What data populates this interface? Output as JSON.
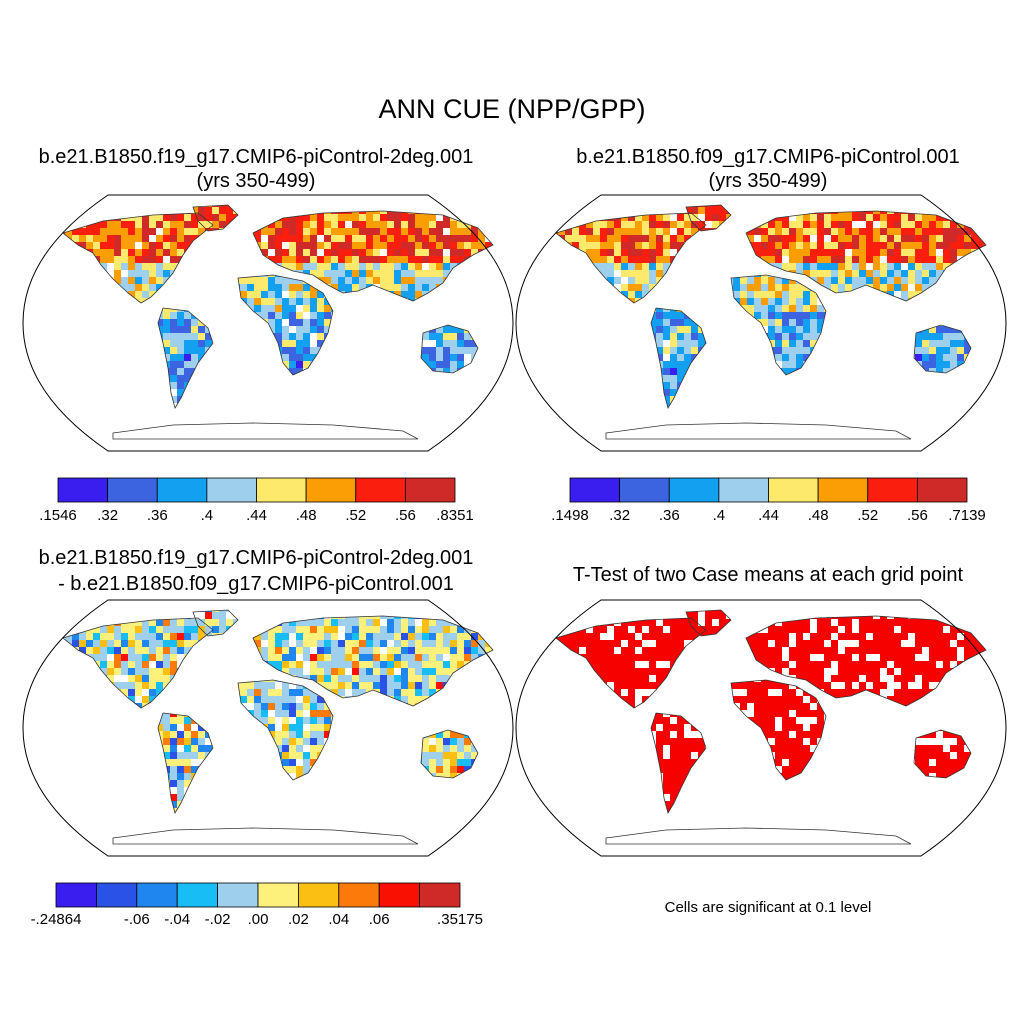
{
  "main_title": "ANN CUE (NPP/GPP)",
  "panels": [
    {
      "title_line1": "b.e21.B1850.f19_g17.CMIP6-piControl-2deg.001",
      "title_line2": "(yrs 350-499)",
      "palette": [
        "#3a1ef0",
        "#3c64e0",
        "#14a0f0",
        "#9ed0ee",
        "#fde96c",
        "#fb9e06",
        "#fa1e0e",
        "#d02a28"
      ],
      "labelbar_labels": [
        ".1546",
        ".32",
        ".36",
        ".4",
        ".44",
        ".48",
        ".52",
        ".56",
        ".8351"
      ]
    },
    {
      "title_line1": "b.e21.B1850.f09_g17.CMIP6-piControl.001",
      "title_line2": "(yrs 350-499)",
      "palette": [
        "#3a1ef0",
        "#3c64e0",
        "#14a0f0",
        "#9ed0ee",
        "#fde96c",
        "#fb9e06",
        "#fa1e0e",
        "#d02a28"
      ],
      "labelbar_labels": [
        ".1498",
        ".32",
        ".36",
        ".4",
        ".44",
        ".48",
        ".52",
        ".56",
        ".7139"
      ]
    },
    {
      "title_line1": "b.e21.B1850.f19_g17.CMIP6-piControl-2deg.001",
      "title_line2": "- b.e21.B1850.f09_g17.CMIP6-piControl.001",
      "palette": [
        "#3a1ef0",
        "#2a52e6",
        "#1f86f0",
        "#18bdf5",
        "#9ed0ee",
        "#fdf17c",
        "#fbbf14",
        "#fb7a0a",
        "#fa1002",
        "#d02a28"
      ],
      "labelbar_labels": [
        "-.24864",
        "",
        "-.06",
        "-.04",
        "-.02",
        ".00",
        ".02",
        ".04",
        ".06",
        "",
        ".35175"
      ]
    },
    {
      "title_line1": "T-Test of two Case means at each grid point",
      "note": "Cells are significant at 0.1 level",
      "significance_color": "#f70000"
    }
  ],
  "colors": {
    "land_outline": "#333333",
    "map_border": "#000000"
  }
}
